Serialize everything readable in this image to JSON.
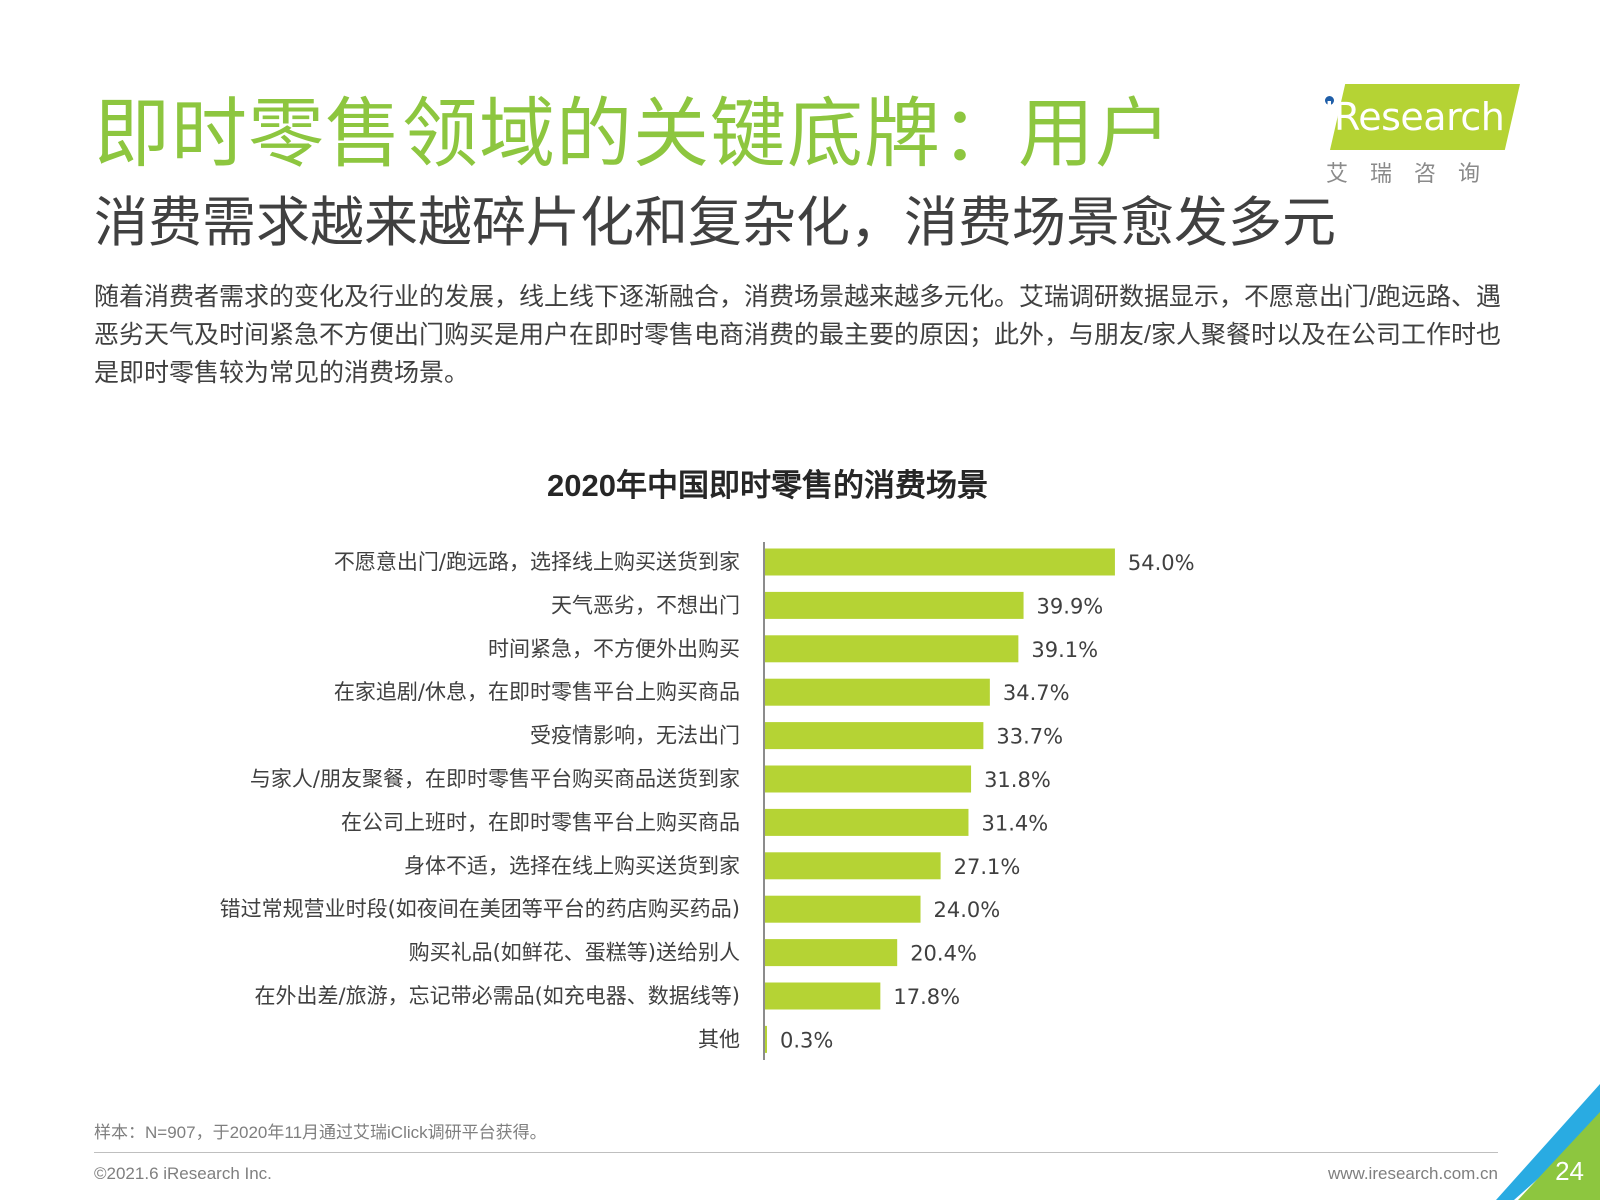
{
  "title": "即时零售领域的关键底牌：用户",
  "subtitle": "消费需求越来越碎片化和复杂化，消费场景愈发多元",
  "body": "随着消费者需求的变化及行业的发展，线上线下逐渐融合，消费场景越来越多元化。艾瑞调研数据显示，不愿意出门/跑远路、遇恶劣天气及时间紧急不方便出门购买是用户在即时零售电商消费的最主要的原因；此外，与朋友/家人聚餐时以及在公司工作时也是即时零售较为常见的消费场景。",
  "logo": {
    "name": "iResearch",
    "sub": "艾瑞咨询"
  },
  "chart_data": {
    "type": "bar",
    "orientation": "horizontal",
    "title": "2020年中国即时零售的消费场景",
    "categories": [
      "不愿意出门/跑远路，选择线上购买送货到家",
      "天气恶劣，不想出门",
      "时间紧急，不方便外出购买",
      "在家追剧/休息，在即时零售平台上购买商品",
      "受疫情影响，无法出门",
      "与家人/朋友聚餐，在即时零售平台购买商品送货到家",
      "在公司上班时，在即时零售平台上购买商品",
      "身体不适，选择在线上购买送货到家",
      "错过常规营业时段(如夜间在美团等平台的药店购买药品)",
      "购买礼品(如鲜花、蛋糕等)送给别人",
      "在外出差/旅游，忘记带必需品(如充电器、数据线等)",
      "其他"
    ],
    "values": [
      54.0,
      39.9,
      39.1,
      34.7,
      33.7,
      31.8,
      31.4,
      27.1,
      24.0,
      20.4,
      17.8,
      0.3
    ],
    "value_labels": [
      "54.0%",
      "39.9%",
      "39.1%",
      "34.7%",
      "33.7%",
      "31.8%",
      "31.4%",
      "27.1%",
      "24.0%",
      "20.4%",
      "17.8%",
      "0.3%"
    ],
    "unit": "%",
    "xlim": [
      0,
      100
    ],
    "bar_color": "#b5d334",
    "grid": false
  },
  "footer": {
    "note": "样本：N=907，于2020年11月通过艾瑞iClick调研平台获得。",
    "copyright": "©2021.6 iResearch Inc.",
    "website": "www.iresearch.com.cn",
    "page": "24"
  },
  "colors": {
    "title": "#8dc63f",
    "accent": "#b5d334",
    "text": "#404040"
  }
}
